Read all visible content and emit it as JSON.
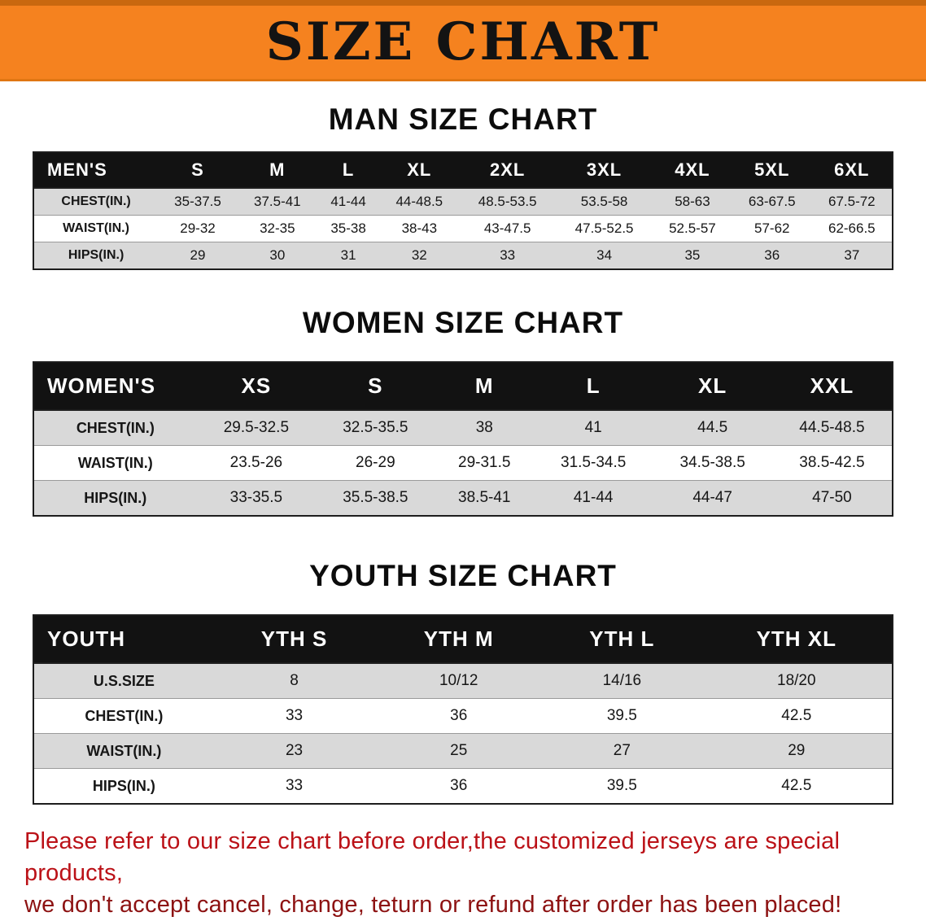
{
  "banner": {
    "title": "SIZE CHART"
  },
  "sections": [
    {
      "heading": "MAN SIZE CHART",
      "table": {
        "header": [
          "MEN'S",
          "S",
          "M",
          "L",
          "XL",
          "2XL",
          "3XL",
          "4XL",
          "5XL",
          "6XL"
        ],
        "rows": [
          [
            "CHEST(IN.)",
            "35-37.5",
            "37.5-41",
            "41-44",
            "44-48.5",
            "48.5-53.5",
            "53.5-58",
            "58-63",
            "63-67.5",
            "67.5-72"
          ],
          [
            "WAIST(IN.)",
            "29-32",
            "32-35",
            "35-38",
            "38-43",
            "43-47.5",
            "47.5-52.5",
            "52.5-57",
            "57-62",
            "62-66.5"
          ],
          [
            "HIPS(IN.)",
            "29",
            "30",
            "31",
            "32",
            "33",
            "34",
            "35",
            "36",
            "37"
          ]
        ]
      }
    },
    {
      "heading": "WOMEN SIZE CHART",
      "table": {
        "header": [
          "WOMEN'S",
          "XS",
          "S",
          "M",
          "L",
          "XL",
          "XXL"
        ],
        "rows": [
          [
            "CHEST(IN.)",
            "29.5-32.5",
            "32.5-35.5",
            "38",
            "41",
            "44.5",
            "44.5-48.5"
          ],
          [
            "WAIST(IN.)",
            "23.5-26",
            "26-29",
            "29-31.5",
            "31.5-34.5",
            "34.5-38.5",
            "38.5-42.5"
          ],
          [
            "HIPS(IN.)",
            "33-35.5",
            "35.5-38.5",
            "38.5-41",
            "41-44",
            "44-47",
            "47-50"
          ]
        ]
      }
    },
    {
      "heading": "YOUTH SIZE CHART",
      "table": {
        "header": [
          "YOUTH",
          "YTH S",
          "YTH M",
          "YTH L",
          "YTH XL"
        ],
        "rows": [
          [
            "U.S.SIZE",
            "8",
            "10/12",
            "14/16",
            "18/20"
          ],
          [
            "CHEST(IN.)",
            "33",
            "36",
            "39.5",
            "42.5"
          ],
          [
            "WAIST(IN.)",
            "23",
            "25",
            "27",
            "29"
          ],
          [
            "HIPS(IN.)",
            "33",
            "36",
            "39.5",
            "42.5"
          ]
        ]
      }
    }
  ],
  "footer": {
    "line1": "Please refer to our size chart before order,the customized jerseys are special products,",
    "line2": "we don't accept cancel, change, teturn or refund after order has been placed!"
  },
  "colors": {
    "banner_bg": "#f5821f",
    "table_header_bg": "#121212",
    "row_alt_bg": "#d9d9d9",
    "note_red_line1": "#bb1117",
    "note_red_line2": "#8d1212"
  }
}
